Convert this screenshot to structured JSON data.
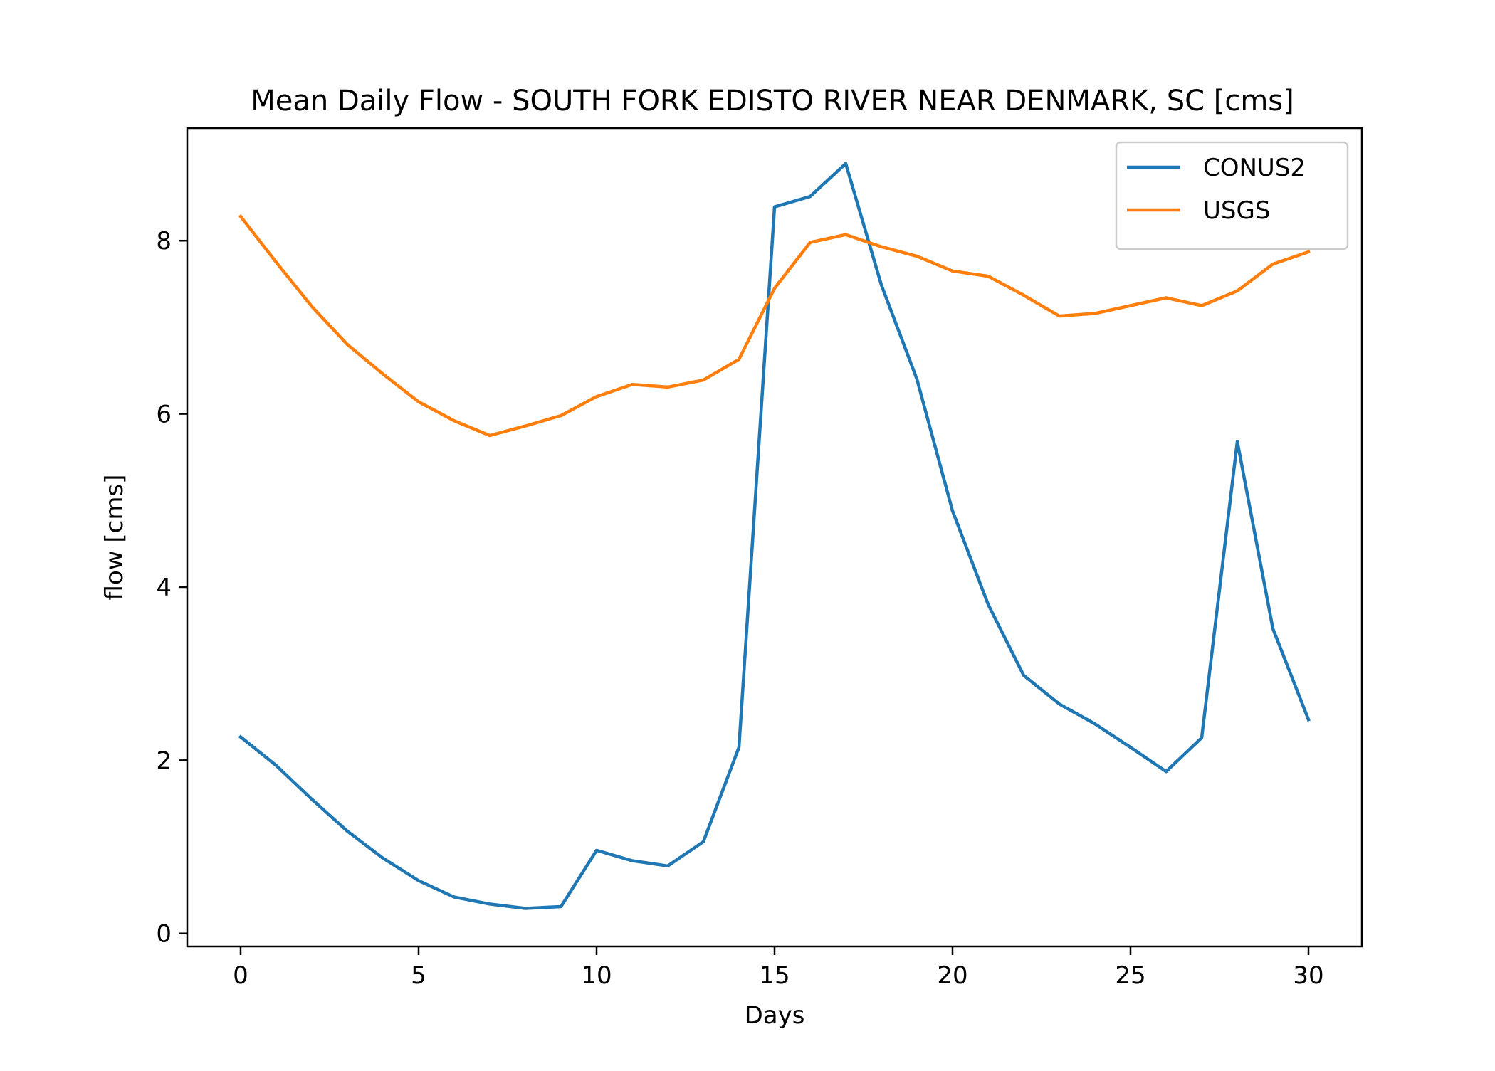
{
  "chart_data": {
    "type": "line",
    "title": "Mean Daily Flow - SOUTH FORK EDISTO RIVER NEAR DENMARK, SC [cms]",
    "xlabel": "Days",
    "ylabel": "flow [cms]",
    "xlim": [
      -1.5,
      31.5
    ],
    "ylim": [
      -0.15,
      9.3
    ],
    "xticks": [
      0,
      5,
      10,
      15,
      20,
      25,
      30
    ],
    "yticks": [
      0,
      2,
      4,
      6,
      8
    ],
    "grid": false,
    "legend_position": "top-right",
    "x": [
      0,
      1,
      2,
      3,
      4,
      5,
      6,
      7,
      8,
      9,
      10,
      11,
      12,
      13,
      14,
      15,
      16,
      17,
      18,
      19,
      20,
      21,
      22,
      23,
      24,
      25,
      26,
      27,
      28,
      29,
      30
    ],
    "series": [
      {
        "name": "CONUS2",
        "color": "#1f77b4",
        "values": [
          2.27,
          1.94,
          1.55,
          1.18,
          0.87,
          0.61,
          0.42,
          0.34,
          0.29,
          0.31,
          0.96,
          0.84,
          0.78,
          1.06,
          2.15,
          8.39,
          8.51,
          8.89,
          7.49,
          6.4,
          4.88,
          3.8,
          2.98,
          2.65,
          2.42,
          2.15,
          1.87,
          2.26,
          5.68,
          3.52,
          2.47
        ]
      },
      {
        "name": "USGS",
        "color": "#ff7f0e",
        "values": [
          8.28,
          7.75,
          7.24,
          6.8,
          6.46,
          6.14,
          5.92,
          5.75,
          5.86,
          5.98,
          6.2,
          6.34,
          6.31,
          6.39,
          6.63,
          7.45,
          7.98,
          8.07,
          7.93,
          7.82,
          7.65,
          7.59,
          7.37,
          7.13,
          7.16,
          7.25,
          7.34,
          7.25,
          7.42,
          7.73,
          7.87
        ]
      }
    ]
  }
}
